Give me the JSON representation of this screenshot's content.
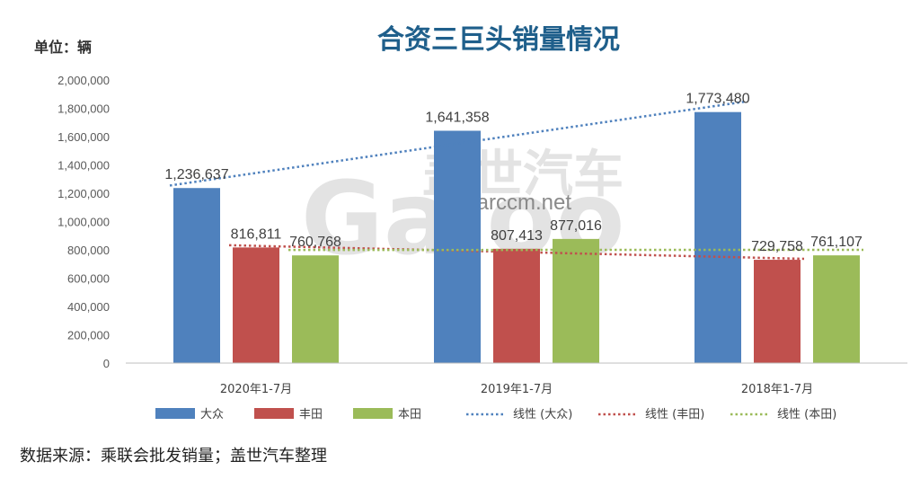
{
  "chart_data": {
    "type": "bar",
    "title": "合资三巨头销量情况",
    "unit_label": "单位：辆",
    "categories": [
      "2020年1-7月",
      "2019年1-7月",
      "2018年1-7月"
    ],
    "series": [
      {
        "name": "大众",
        "color": "#4f81bd",
        "values": [
          1236637,
          1641358,
          1773480
        ],
        "labels": [
          "1,236,637",
          "1,641,358",
          "1,773,480"
        ]
      },
      {
        "name": "丰田",
        "color": "#c0504d",
        "values": [
          816811,
          807413,
          729758
        ],
        "labels": [
          "816,811",
          "807,413",
          "729,758"
        ]
      },
      {
        "name": "本田",
        "color": "#9bbb59",
        "values": [
          760768,
          877016,
          761107
        ],
        "labels": [
          "760,768",
          "877,016",
          "761,107"
        ]
      }
    ],
    "trendlines": [
      {
        "name": "线性 (大众)",
        "color": "#4f81bd",
        "of_series": "大众"
      },
      {
        "name": "线性 (丰田)",
        "color": "#c0504d",
        "of_series": "丰田"
      },
      {
        "name": "线性 (本田)",
        "color": "#9bbb59",
        "of_series": "本田"
      }
    ],
    "yticks": [
      "0",
      "200,000",
      "400,000",
      "600,000",
      "800,000",
      "1,000,000",
      "1,200,000",
      "1,400,000",
      "1,600,000",
      "1,800,000",
      "2,000,000"
    ],
    "ylim": [
      0,
      2000000
    ],
    "ystep": 200000,
    "grid": false,
    "legend_position": "bottom"
  },
  "source": "数据来源：乘联会批发销量；盖世汽车整理",
  "watermark": {
    "brand": "盖世汽车",
    "url": "starccm.net",
    "logo_text": "Gasgoo"
  }
}
